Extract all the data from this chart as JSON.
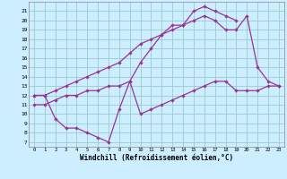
{
  "title": "",
  "xlabel": "Windchill (Refroidissement éolien,°C)",
  "bg_color": "#cceeff",
  "grid_color": "#99cccc",
  "line_color": "#993399",
  "xlim": [
    -0.5,
    23.5
  ],
  "ylim": [
    6.5,
    22
  ],
  "xticks": [
    0,
    1,
    2,
    3,
    4,
    5,
    6,
    7,
    8,
    9,
    10,
    11,
    12,
    13,
    14,
    15,
    16,
    17,
    18,
    19,
    20,
    21,
    22,
    23
  ],
  "yticks": [
    7,
    8,
    9,
    10,
    11,
    12,
    13,
    14,
    15,
    16,
    17,
    18,
    19,
    20,
    21
  ],
  "series": [
    {
      "x": [
        0,
        1,
        2,
        3,
        4,
        5,
        6,
        7,
        8,
        9,
        10,
        11,
        12,
        13,
        14,
        15,
        16,
        17,
        18,
        19
      ],
      "y": [
        12,
        12,
        9.5,
        8.5,
        8.5,
        8.0,
        7.5,
        7.0,
        10.5,
        13.5,
        15.5,
        17.0,
        18.5,
        19.5,
        19.5,
        21.0,
        21.5,
        21.0,
        20.5,
        20.0
      ]
    },
    {
      "x": [
        0,
        1,
        2,
        3,
        4,
        5,
        6,
        7,
        8,
        9,
        10,
        11,
        12,
        13,
        14,
        15,
        16,
        17,
        18,
        19,
        20,
        21,
        22,
        23
      ],
      "y": [
        12,
        12,
        12.5,
        13.0,
        13.5,
        14.0,
        14.5,
        15.0,
        15.5,
        16.5,
        17.5,
        18.0,
        18.5,
        19.0,
        19.5,
        20.0,
        20.5,
        20.0,
        19.0,
        19.0,
        20.5,
        15.0,
        13.5,
        13.0
      ]
    },
    {
      "x": [
        0,
        1,
        2,
        3,
        4,
        5,
        6,
        7,
        8,
        9,
        10,
        11,
        12,
        13,
        14,
        15,
        16,
        17,
        18,
        19,
        20,
        21,
        22,
        23
      ],
      "y": [
        11,
        11,
        11.5,
        12.0,
        12.0,
        12.5,
        12.5,
        13.0,
        13.0,
        13.5,
        10.0,
        10.5,
        11.0,
        11.5,
        12.0,
        12.5,
        13.0,
        13.5,
        13.5,
        12.5,
        12.5,
        12.5,
        13.0,
        13.0
      ]
    }
  ]
}
